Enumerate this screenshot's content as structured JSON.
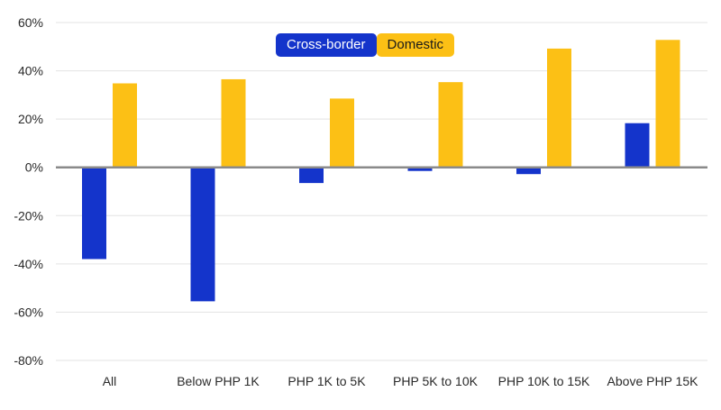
{
  "chart_data": {
    "type": "bar",
    "title": "",
    "xlabel": "",
    "ylabel": "",
    "categories": [
      "All",
      "Below PHP 1K",
      "PHP 1K to 5K",
      "PHP 5K to 10K",
      "PHP 10K to 15K",
      "Above PHP 15K"
    ],
    "series": [
      {
        "name": "Cross-border",
        "color": "#1434cb",
        "values": [
          -38,
          -55.5,
          -6.5,
          -1.5,
          -2.8,
          18.3
        ]
      },
      {
        "name": "Domestic",
        "color": "#fcc015",
        "values": [
          34.8,
          36.5,
          28.5,
          35.3,
          49.2,
          52.8
        ]
      }
    ],
    "ylim": [
      -80,
      60
    ],
    "yticks": [
      60,
      40,
      20,
      0,
      -20,
      -40,
      -60,
      -80
    ],
    "ytick_labels": [
      "60%",
      "40%",
      "20%",
      "0%",
      "-20%",
      "-40%",
      "-60%",
      "-80%"
    ],
    "grid": true,
    "legend_position": "top-center"
  }
}
